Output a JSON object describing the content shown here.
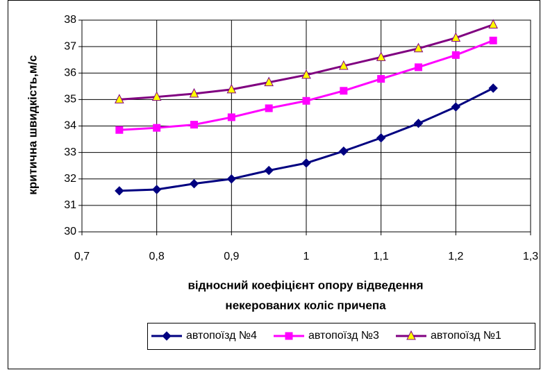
{
  "chart_data": {
    "type": "line",
    "ylabel": "критична швидкість,м/с",
    "xlabel": [
      "відносний коефіцієнт опору відведення",
      "некерованих коліс причепа"
    ],
    "x": [
      0.75,
      0.8,
      0.85,
      0.9,
      0.95,
      1,
      1.05,
      1.1,
      1.15,
      1.2,
      1.25
    ],
    "series": [
      {
        "name": "автопоїзд №4",
        "color": "#000080",
        "marker": "diamond",
        "marker_fill": "#000080",
        "values": [
          31.55,
          31.6,
          31.82,
          32.0,
          32.32,
          32.6,
          33.05,
          33.55,
          34.1,
          34.72,
          35.43
        ]
      },
      {
        "name": "автопоїзд №3",
        "color": "#ff00ff",
        "marker": "square",
        "marker_fill": "#ff00ff",
        "values": [
          33.85,
          33.93,
          34.05,
          34.33,
          34.67,
          34.95,
          35.33,
          35.78,
          36.22,
          36.68,
          37.23
        ]
      },
      {
        "name": "автопоїзд №1",
        "color": "#800080",
        "marker": "triangle",
        "marker_fill": "#ffff00",
        "values": [
          35.0,
          35.1,
          35.22,
          35.38,
          35.65,
          35.93,
          36.27,
          36.6,
          36.93,
          37.33,
          37.83
        ]
      }
    ],
    "xlim": [
      0.7,
      1.3
    ],
    "xticks": [
      {
        "value": 0.7,
        "label": "0,7"
      },
      {
        "value": 0.8,
        "label": "0,8"
      },
      {
        "value": 0.9,
        "label": "0,9"
      },
      1,
      {
        "value": 1.1,
        "label": "1,1"
      },
      {
        "value": 1.2,
        "label": "1,2"
      },
      {
        "value": 1.3,
        "label": "1,3"
      }
    ],
    "ylim": [
      30,
      38
    ],
    "yticks": [
      30,
      31,
      32,
      33,
      34,
      35,
      36,
      37,
      38
    ],
    "grid": true,
    "legend": "bottom"
  }
}
